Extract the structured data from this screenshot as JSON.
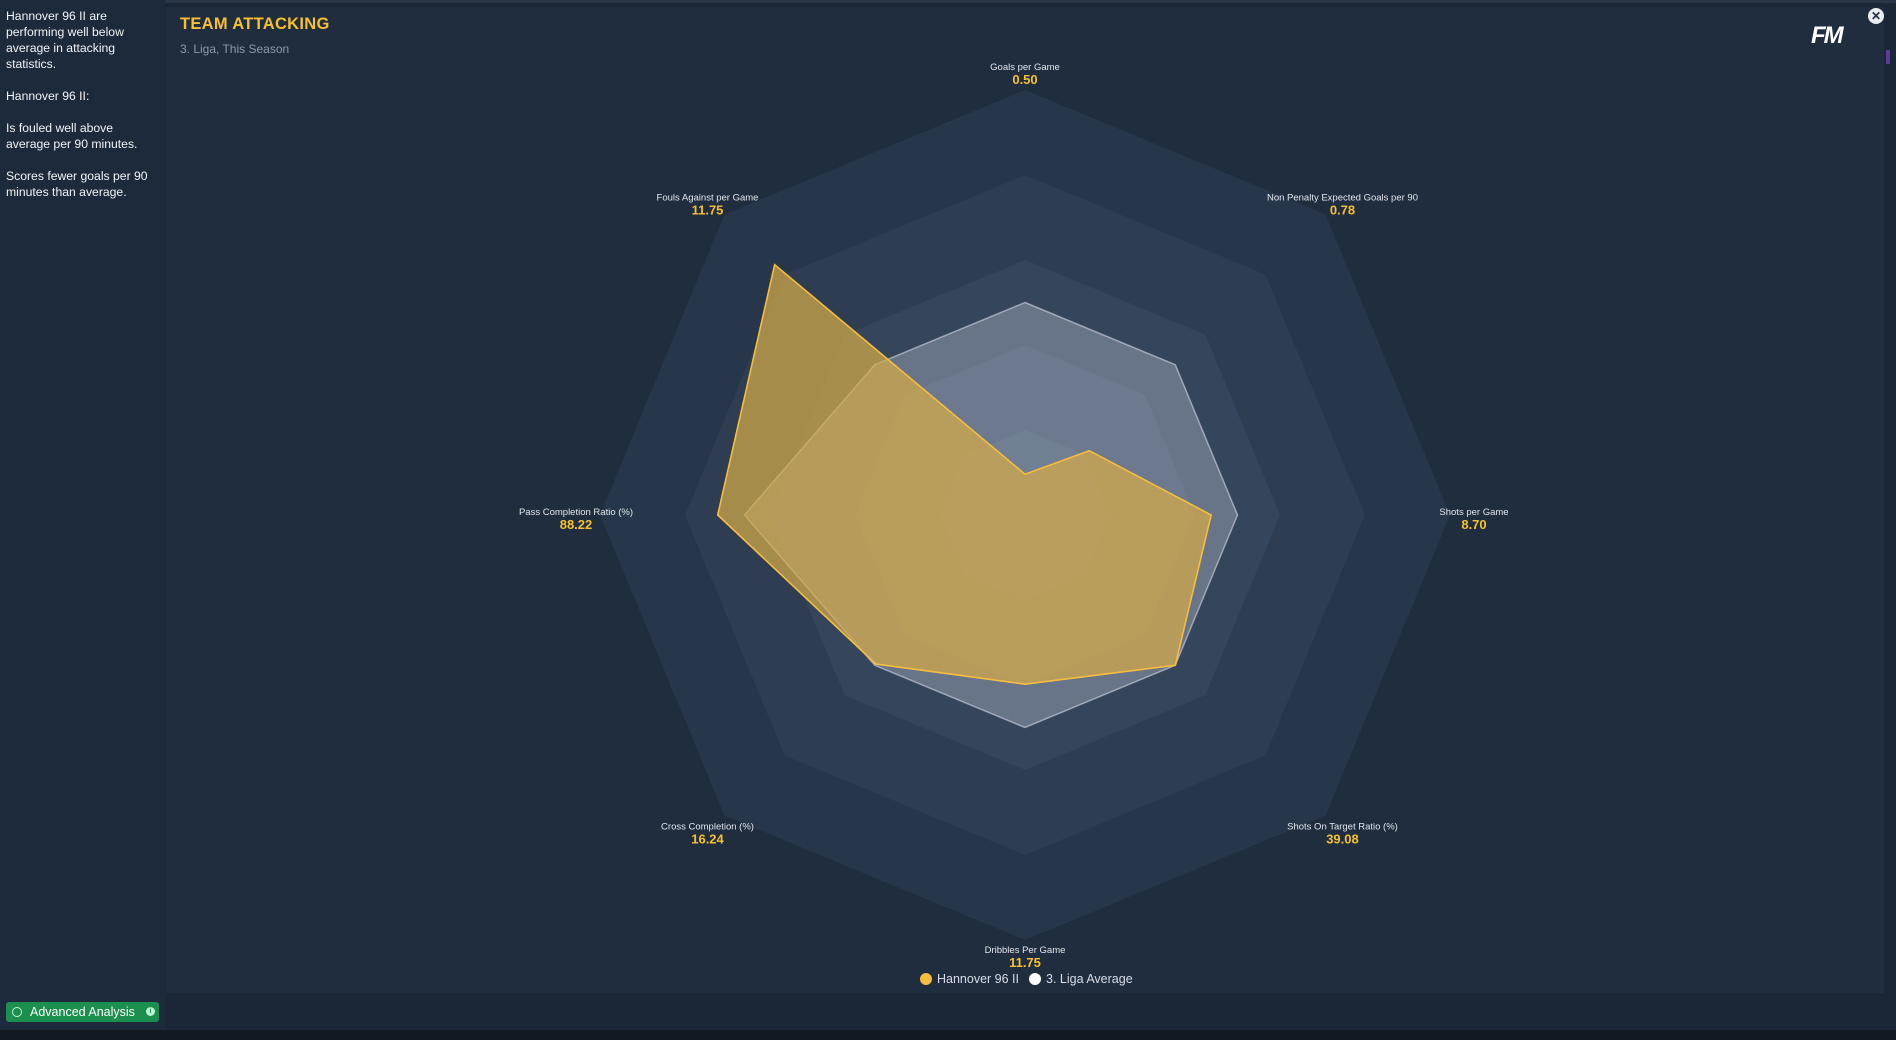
{
  "sidebar": {
    "paragraphs": [
      "Hannover 96 II are performing well below average in attacking statistics.",
      "Hannover 96 II:",
      "Is fouled well above average per 90 minutes.",
      "Scores fewer goals per 90 minutes than average."
    ],
    "button_label": "Advanced Analysis"
  },
  "header": {
    "title": "TEAM ATTACKING",
    "subtitle": "3. Liga, This Season",
    "logo": "FM",
    "close_icon": "close-icon"
  },
  "colors": {
    "team": "#f7bd3e",
    "average": "#ffffff",
    "value_text": "#f7c030",
    "background": "#1f2d3f"
  },
  "chart_data": {
    "type": "radar",
    "title": "TEAM ATTACKING",
    "subtitle": "3. Liga, This Season",
    "rings": 5,
    "axes": [
      {
        "label": "Goals per Game",
        "value": "0.50"
      },
      {
        "label": "Non Penalty Expected Goals per 90",
        "value": "0.78"
      },
      {
        "label": "Shots per Game",
        "value": "8.70"
      },
      {
        "label": "Shots On Target Ratio (%)",
        "value": "39.08"
      },
      {
        "label": "Dribbles Per Game",
        "value": "11.75"
      },
      {
        "label": "Cross Completion (%)",
        "value": "16.24"
      },
      {
        "label": "Pass Completion Ratio (%)",
        "value": "88.22"
      },
      {
        "label": "Fouls Against per Game",
        "value": "11.75"
      }
    ],
    "series": [
      {
        "name": "Hannover 96 II",
        "normalized": [
          0.096,
          0.214,
          0.438,
          0.5,
          0.398,
          0.496,
          0.723,
          0.833
        ]
      },
      {
        "name": "3. Liga Average",
        "normalized": [
          0.5,
          0.5,
          0.5,
          0.5,
          0.5,
          0.5,
          0.66,
          0.5
        ]
      }
    ],
    "legend": [
      "Hannover 96 II",
      "3. Liga Average"
    ],
    "legend_position": "bottom"
  }
}
